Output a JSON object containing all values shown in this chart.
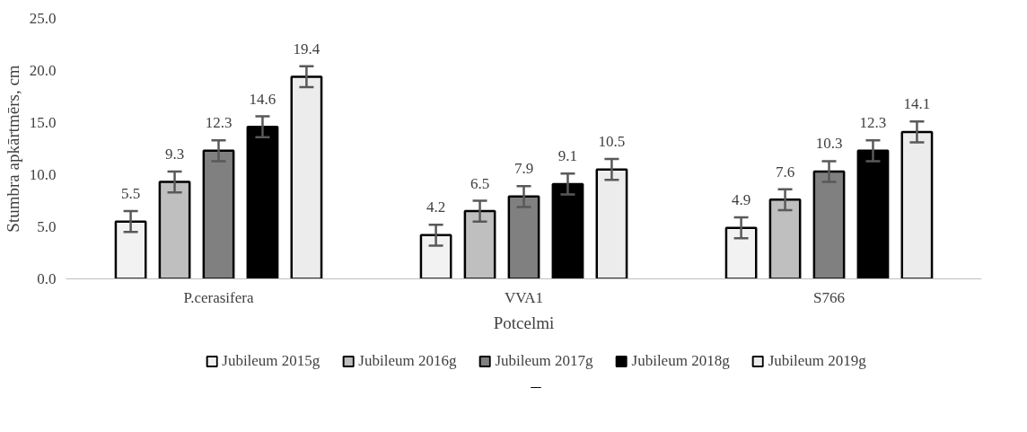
{
  "chart_data": {
    "type": "bar",
    "xlabel": "Potcelmi",
    "ylabel": "Stumbra apkārtmērs, cm",
    "categories": [
      "P.cerasifera",
      "VVA1",
      "S766"
    ],
    "series": [
      {
        "name": "Jubileum 2015g",
        "color": "#f2f2f2",
        "values": [
          5.5,
          4.2,
          4.9
        ],
        "errors": [
          1.0,
          1.0,
          1.0
        ]
      },
      {
        "name": "Jubileum 2016g",
        "color": "#bfbfbf",
        "values": [
          9.3,
          6.5,
          7.6
        ],
        "errors": [
          1.0,
          1.0,
          1.0
        ]
      },
      {
        "name": "Jubileum 2017g",
        "color": "#808080",
        "values": [
          12.3,
          7.9,
          10.3
        ],
        "errors": [
          1.0,
          1.0,
          1.0
        ]
      },
      {
        "name": "Jubileum 2018g",
        "color": "#000000",
        "values": [
          14.6,
          9.1,
          12.3
        ],
        "errors": [
          1.0,
          1.0,
          1.0
        ]
      },
      {
        "name": "Jubileum 2019g",
        "color": "#ececec",
        "values": [
          19.4,
          10.5,
          14.1
        ],
        "errors": [
          1.0,
          1.0,
          1.0
        ]
      }
    ],
    "ylim": [
      0,
      25
    ],
    "yticks": [
      {
        "value": 0,
        "label": "0.0"
      },
      {
        "value": 5,
        "label": "5.0"
      },
      {
        "value": 10,
        "label": "10.0"
      },
      {
        "value": 15,
        "label": "15.0"
      },
      {
        "value": 20,
        "label": "20.0"
      },
      {
        "value": 25,
        "label": "25.0"
      }
    ],
    "data_labels": true,
    "legend": "bottom",
    "grid": false
  }
}
